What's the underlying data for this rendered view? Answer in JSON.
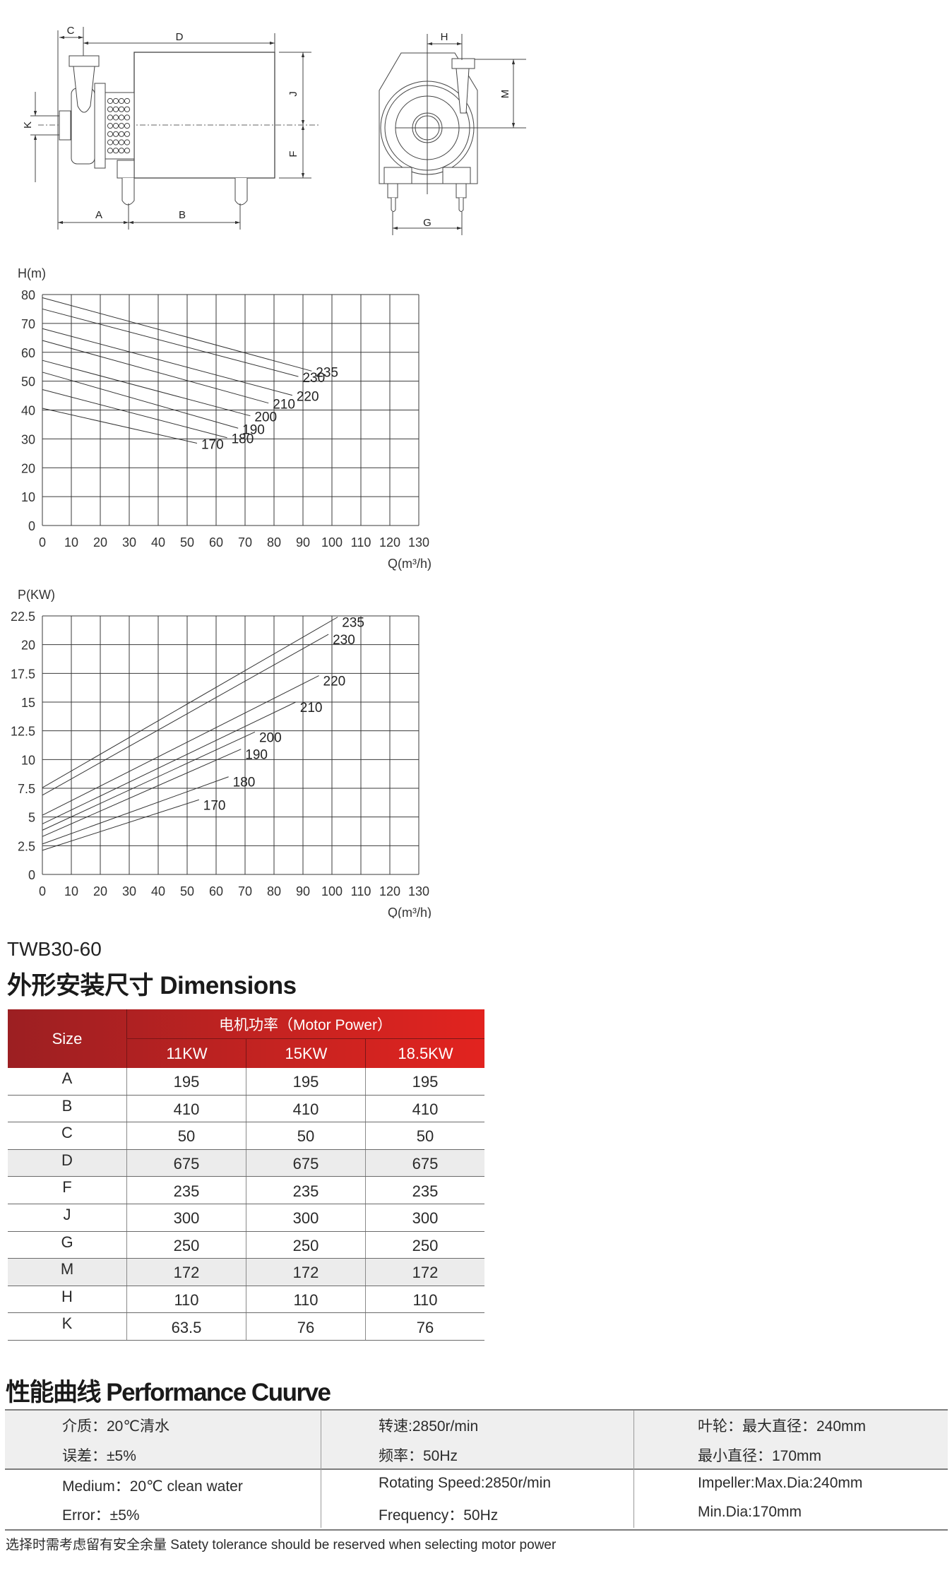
{
  "drawing": {
    "labels": {
      "A": "A",
      "B": "B",
      "C": "C",
      "D": "D",
      "F": "F",
      "J": "J",
      "K": "K",
      "G": "G",
      "H": "H",
      "M": "M"
    }
  },
  "chart_data": [
    {
      "type": "line",
      "ylabel": "H(m)",
      "xlabel": "Q(m³/h)",
      "xlim": [
        0,
        130
      ],
      "ylim": [
        0,
        80
      ],
      "xticks": [
        "0",
        "10",
        "20",
        "30",
        "40",
        "50",
        "60",
        "70",
        "80",
        "90",
        "100",
        "110",
        "120",
        "130"
      ],
      "yticks": [
        "0",
        "10",
        "20",
        "30",
        "40",
        "50",
        "60",
        "70",
        "80"
      ],
      "grid": true,
      "series": [
        {
          "name": "235",
          "x": [
            0,
            93
          ],
          "y": [
            78.9,
            53.5
          ]
        },
        {
          "name": "230",
          "x": [
            0,
            88.4
          ],
          "y": [
            75.0,
            51.6
          ]
        },
        {
          "name": "220",
          "x": [
            0,
            86.3
          ],
          "y": [
            68.2,
            45.1
          ]
        },
        {
          "name": "210",
          "x": [
            0,
            78.1
          ],
          "y": [
            64.1,
            42.4
          ]
        },
        {
          "name": "200",
          "x": [
            0,
            71.8
          ],
          "y": [
            57.2,
            38.0
          ]
        },
        {
          "name": "190",
          "x": [
            0,
            67.6
          ],
          "y": [
            53.1,
            33.7
          ]
        },
        {
          "name": "180",
          "x": [
            0,
            63.8
          ],
          "y": [
            47.1,
            30.4
          ]
        },
        {
          "name": "170",
          "x": [
            0,
            53.4
          ],
          "y": [
            40.6,
            28.5
          ]
        }
      ]
    },
    {
      "type": "line",
      "ylabel": "P(KW)",
      "xlabel": "Q(m³/h)",
      "xlim": [
        0,
        130
      ],
      "ylim": [
        0,
        22.5
      ],
      "xticks": [
        "0",
        "10",
        "20",
        "30",
        "40",
        "50",
        "60",
        "70",
        "80",
        "90",
        "100",
        "110",
        "120",
        "130"
      ],
      "yticks": [
        "0",
        "2.5",
        "5",
        "7.5",
        "10",
        "12.5",
        "15",
        "17.5",
        "20",
        "22.5"
      ],
      "grid": true,
      "series": [
        {
          "name": "235",
          "x": [
            0,
            102
          ],
          "y": [
            7.55,
            22.4
          ]
        },
        {
          "name": "230",
          "x": [
            0,
            98.8
          ],
          "y": [
            6.9,
            20.9
          ]
        },
        {
          "name": "220",
          "x": [
            0,
            95.5
          ],
          "y": [
            5.15,
            17.3
          ]
        },
        {
          "name": "210",
          "x": [
            0,
            87.5
          ],
          "y": [
            4.4,
            15.0
          ]
        },
        {
          "name": "200",
          "x": [
            0,
            73.4
          ],
          "y": [
            3.85,
            12.4
          ]
        },
        {
          "name": "190",
          "x": [
            0,
            68.6
          ],
          "y": [
            3.3,
            10.9
          ]
        },
        {
          "name": "180",
          "x": [
            0,
            64.3
          ],
          "y": [
            2.65,
            8.5
          ]
        },
        {
          "name": "170",
          "x": [
            0,
            54.1
          ],
          "y": [
            2.1,
            6.5
          ]
        }
      ]
    }
  ],
  "model": "TWB30-60",
  "dimensions": {
    "title": "外形安装尺寸  Dimensions",
    "header": {
      "size": "Size",
      "motor_power": "电机功率（Motor Power）",
      "powers": [
        "11KW",
        "15KW",
        "18.5KW"
      ]
    },
    "header_color_left": "#9c1f22",
    "header_color_right": "#e2231f",
    "rows": [
      {
        "size": "A",
        "values": [
          "195",
          "195",
          "195"
        ]
      },
      {
        "size": "B",
        "values": [
          "410",
          "410",
          "410"
        ]
      },
      {
        "size": "C",
        "values": [
          "50",
          "50",
          "50"
        ]
      },
      {
        "size": "D",
        "values": [
          "675",
          "675",
          "675"
        ],
        "shaded": true
      },
      {
        "size": "F",
        "values": [
          "235",
          "235",
          "235"
        ]
      },
      {
        "size": "J",
        "values": [
          "300",
          "300",
          "300"
        ]
      },
      {
        "size": "G",
        "values": [
          "250",
          "250",
          "250"
        ]
      },
      {
        "size": "M",
        "values": [
          "172",
          "172",
          "172"
        ],
        "shaded": true
      },
      {
        "size": "H",
        "values": [
          "110",
          "110",
          "110"
        ]
      },
      {
        "size": "K",
        "values": [
          "63.5",
          "76",
          "76"
        ]
      }
    ]
  },
  "performance": {
    "title": "性能曲线 Performance Cuurve",
    "cn": [
      [
        "介质：20℃清水",
        "误差：±5%"
      ],
      [
        "转速:2850r/min",
        "频率：50Hz"
      ],
      [
        "叶轮：最大直径：240mm",
        "最小直径：170mm"
      ]
    ],
    "en": [
      [
        "Medium：20℃ clean water",
        "Error：±5%"
      ],
      [
        "Rotating Speed:2850r/min",
        "Frequency：50Hz"
      ],
      [
        "Impeller:Max.Dia:240mm",
        "Min.Dia:170mm"
      ]
    ]
  },
  "note": "选择时需考虑留有安全余量 Satety tolerance should be reserved when selecting motor power"
}
